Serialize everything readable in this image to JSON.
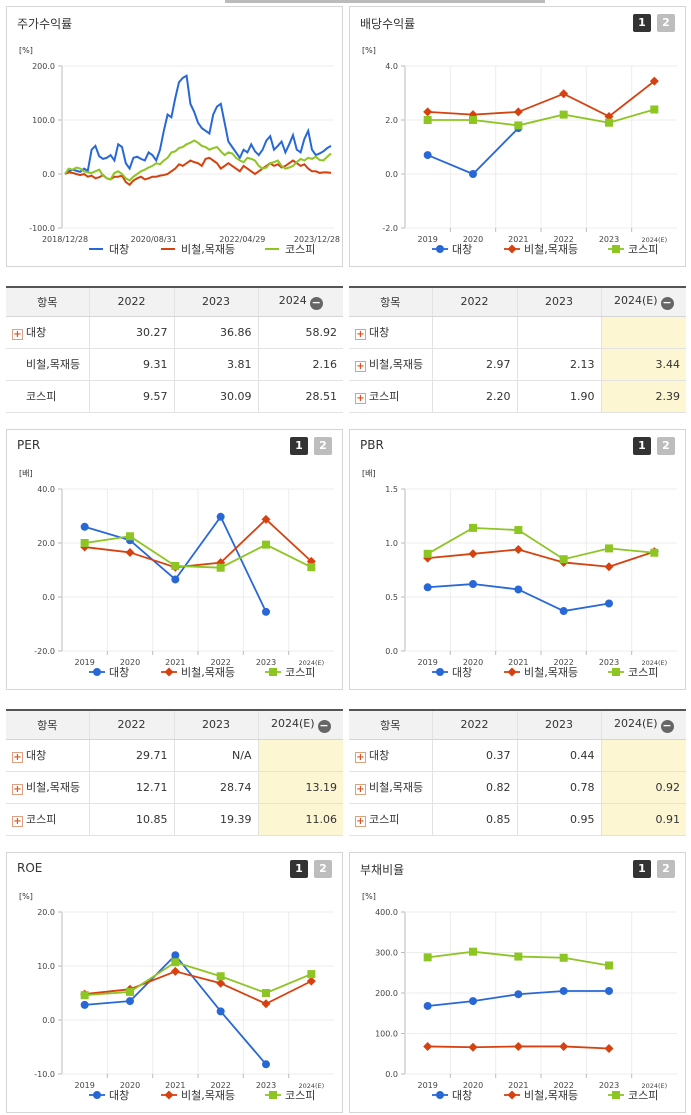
{
  "legend": [
    "대창",
    "비철,목재등",
    "코스피"
  ],
  "colors": {
    "s0": "#2868d6",
    "s1": "#d6420f",
    "s2": "#8dc523"
  },
  "panels": {
    "price": {
      "title": "주가수익률"
    },
    "div": {
      "title": "배당수익률",
      "btn1": "1",
      "btn2": "2"
    },
    "per": {
      "title": "PER",
      "btn1": "1",
      "btn2": "2"
    },
    "pbr": {
      "title": "PBR",
      "btn1": "1",
      "btn2": "2"
    },
    "roe": {
      "title": "ROE",
      "btn1": "1",
      "btn2": "2"
    },
    "debt": {
      "title": "부채비율",
      "btn1": "1",
      "btn2": "2"
    }
  },
  "tables": {
    "price": {
      "h0": "항목",
      "h1": "2022",
      "h2": "2023",
      "h3": "2024",
      "rows": [
        {
          "name": "대창",
          "v": [
            "30.27",
            "36.86",
            "58.92"
          ]
        },
        {
          "name": "비철,목재등",
          "v": [
            "9.31",
            "3.81",
            "2.16"
          ]
        },
        {
          "name": "코스피",
          "v": [
            "9.57",
            "30.09",
            "28.51"
          ]
        }
      ]
    },
    "div": {
      "h0": "항목",
      "h1": "2022",
      "h2": "2023",
      "h3": "2024(E)",
      "rows": [
        {
          "name": "대창",
          "v": [
            "",
            "",
            ""
          ]
        },
        {
          "name": "비철,목재등",
          "v": [
            "2.97",
            "2.13",
            "3.44"
          ]
        },
        {
          "name": "코스피",
          "v": [
            "2.20",
            "1.90",
            "2.39"
          ]
        }
      ]
    },
    "per": {
      "h0": "항목",
      "h1": "2022",
      "h2": "2023",
      "h3": "2024(E)",
      "rows": [
        {
          "name": "대창",
          "v": [
            "29.71",
            "N/A",
            ""
          ]
        },
        {
          "name": "비철,목재등",
          "v": [
            "12.71",
            "28.74",
            "13.19"
          ]
        },
        {
          "name": "코스피",
          "v": [
            "10.85",
            "19.39",
            "11.06"
          ]
        }
      ]
    },
    "pbr": {
      "h0": "항목",
      "h1": "2022",
      "h2": "2023",
      "h3": "2024(E)",
      "rows": [
        {
          "name": "대창",
          "v": [
            "0.37",
            "0.44",
            ""
          ]
        },
        {
          "name": "비철,목재등",
          "v": [
            "0.82",
            "0.78",
            "0.92"
          ]
        },
        {
          "name": "코스피",
          "v": [
            "0.85",
            "0.95",
            "0.91"
          ]
        }
      ]
    }
  },
  "chart_data": [
    {
      "id": "price",
      "type": "line",
      "title": "주가수익률",
      "unit": "[%]",
      "ylim": [
        -100,
        200
      ],
      "yticks": [
        "200.0",
        "100.0",
        "0.0",
        "-100.0"
      ],
      "xticks": [
        "2018/12/28",
        "2020/08/31",
        "2022/04/29",
        "2023/12/28"
      ],
      "series": [
        {
          "name": "대창",
          "values": [
            0,
            5,
            8,
            6,
            4,
            10,
            6,
            45,
            52,
            33,
            28,
            30,
            35,
            25,
            55,
            50,
            20,
            10,
            30,
            32,
            28,
            25,
            40,
            35,
            25,
            45,
            80,
            110,
            105,
            140,
            170,
            178,
            182,
            130,
            115,
            95,
            85,
            80,
            75,
            110,
            125,
            130,
            95,
            60,
            50,
            40,
            30,
            45,
            40,
            55,
            42,
            35,
            45,
            62,
            70,
            45,
            52,
            60,
            40,
            55,
            72,
            45,
            40,
            65,
            80,
            45,
            35,
            38,
            42,
            48,
            52
          ]
        },
        {
          "name": "비철,목재등",
          "values": [
            0,
            3,
            2,
            0,
            -2,
            0,
            -5,
            -3,
            -8,
            -6,
            -2,
            -8,
            -10,
            -5,
            -5,
            -3,
            -15,
            -20,
            -12,
            -8,
            -5,
            -10,
            -8,
            -5,
            -5,
            -3,
            -2,
            0,
            5,
            10,
            18,
            15,
            20,
            25,
            22,
            20,
            15,
            28,
            30,
            25,
            20,
            10,
            15,
            20,
            15,
            10,
            5,
            15,
            10,
            5,
            0,
            5,
            10,
            15,
            20,
            15,
            18,
            12,
            15,
            20,
            25,
            20,
            15,
            18,
            10,
            5,
            5,
            2,
            3,
            3,
            2
          ]
        },
        {
          "name": "코스피",
          "values": [
            0,
            10,
            8,
            12,
            10,
            5,
            3,
            2,
            5,
            8,
            -3,
            -8,
            -10,
            2,
            5,
            0,
            -8,
            -12,
            -5,
            0,
            5,
            8,
            12,
            15,
            20,
            18,
            25,
            30,
            40,
            42,
            48,
            50,
            55,
            58,
            62,
            58,
            52,
            50,
            45,
            48,
            50,
            42,
            35,
            40,
            38,
            30,
            25,
            22,
            30,
            28,
            25,
            15,
            10,
            12,
            20,
            22,
            25,
            15,
            10,
            12,
            15,
            22,
            28,
            25,
            30,
            28,
            32,
            26,
            25,
            32,
            38
          ]
        }
      ]
    },
    {
      "id": "div",
      "type": "line",
      "title": "배당수익률",
      "unit": "[%]",
      "ylim": [
        -2,
        4
      ],
      "yticks": [
        "4.0",
        "2.0",
        "0.0",
        "-2.0"
      ],
      "categories": [
        "2019",
        "2020",
        "2021",
        "2022",
        "2023",
        "2024(E)"
      ],
      "series": [
        {
          "name": "대창",
          "values": [
            0.7,
            0.0,
            1.7,
            null,
            null,
            null
          ]
        },
        {
          "name": "비철,목재등",
          "values": [
            2.3,
            2.2,
            2.3,
            2.97,
            2.13,
            3.44
          ]
        },
        {
          "name": "코스피",
          "values": [
            2.0,
            2.0,
            1.8,
            2.2,
            1.9,
            2.39
          ]
        }
      ]
    },
    {
      "id": "per",
      "type": "line",
      "title": "PER",
      "unit": "[배]",
      "ylim": [
        -20,
        40
      ],
      "yticks": [
        "40.0",
        "20.0",
        "0.0",
        "-20.0"
      ],
      "categories": [
        "2019",
        "2020",
        "2021",
        "2022",
        "2023",
        "2024(E)"
      ],
      "series": [
        {
          "name": "대창",
          "values": [
            26,
            21,
            6.5,
            29.71,
            -5.5,
            null
          ]
        },
        {
          "name": "비철,목재등",
          "values": [
            18.5,
            16.5,
            11,
            12.71,
            28.74,
            13.19
          ]
        },
        {
          "name": "코스피",
          "values": [
            20,
            22.5,
            11.5,
            10.85,
            19.39,
            11.06
          ]
        }
      ]
    },
    {
      "id": "pbr",
      "type": "line",
      "title": "PBR",
      "unit": "[배]",
      "ylim": [
        0,
        1.5
      ],
      "yticks": [
        "1.5",
        "1.0",
        "0.5",
        "0.0"
      ],
      "categories": [
        "2019",
        "2020",
        "2021",
        "2022",
        "2023",
        "2024(E)"
      ],
      "series": [
        {
          "name": "대창",
          "values": [
            0.59,
            0.62,
            0.57,
            0.37,
            0.44,
            null
          ]
        },
        {
          "name": "비철,목재등",
          "values": [
            0.86,
            0.9,
            0.94,
            0.82,
            0.78,
            0.92
          ]
        },
        {
          "name": "코스피",
          "values": [
            0.9,
            1.14,
            1.12,
            0.85,
            0.95,
            0.91
          ]
        }
      ]
    },
    {
      "id": "roe",
      "type": "line",
      "title": "ROE",
      "unit": "[%]",
      "ylim": [
        -10,
        20
      ],
      "yticks": [
        "20.0",
        "10.0",
        "0.0",
        "-10.0"
      ],
      "categories": [
        "2019",
        "2020",
        "2021",
        "2022",
        "2023",
        "2024(E)"
      ],
      "series": [
        {
          "name": "대창",
          "values": [
            2.8,
            3.5,
            12,
            1.6,
            -8.2,
            null
          ]
        },
        {
          "name": "비철,목재등",
          "values": [
            4.8,
            5.7,
            9,
            6.8,
            3.0,
            7.2
          ]
        },
        {
          "name": "코스피",
          "values": [
            4.6,
            5.2,
            10.7,
            8.1,
            5.0,
            8.5
          ]
        }
      ]
    },
    {
      "id": "debt",
      "type": "line",
      "title": "부채비율",
      "unit": "[%]",
      "ylim": [
        0,
        400
      ],
      "yticks": [
        "400.0",
        "300.0",
        "200.0",
        "100.0",
        "0.0"
      ],
      "categories": [
        "2019",
        "2020",
        "2021",
        "2022",
        "2023",
        "2024(E)"
      ],
      "series": [
        {
          "name": "대창",
          "values": [
            168,
            180,
            197,
            205,
            205,
            null
          ]
        },
        {
          "name": "비철,목재등",
          "values": [
            68,
            66,
            68,
            68,
            63,
            null
          ]
        },
        {
          "name": "코스피",
          "values": [
            288,
            302,
            290,
            287,
            268,
            null
          ]
        }
      ]
    }
  ]
}
